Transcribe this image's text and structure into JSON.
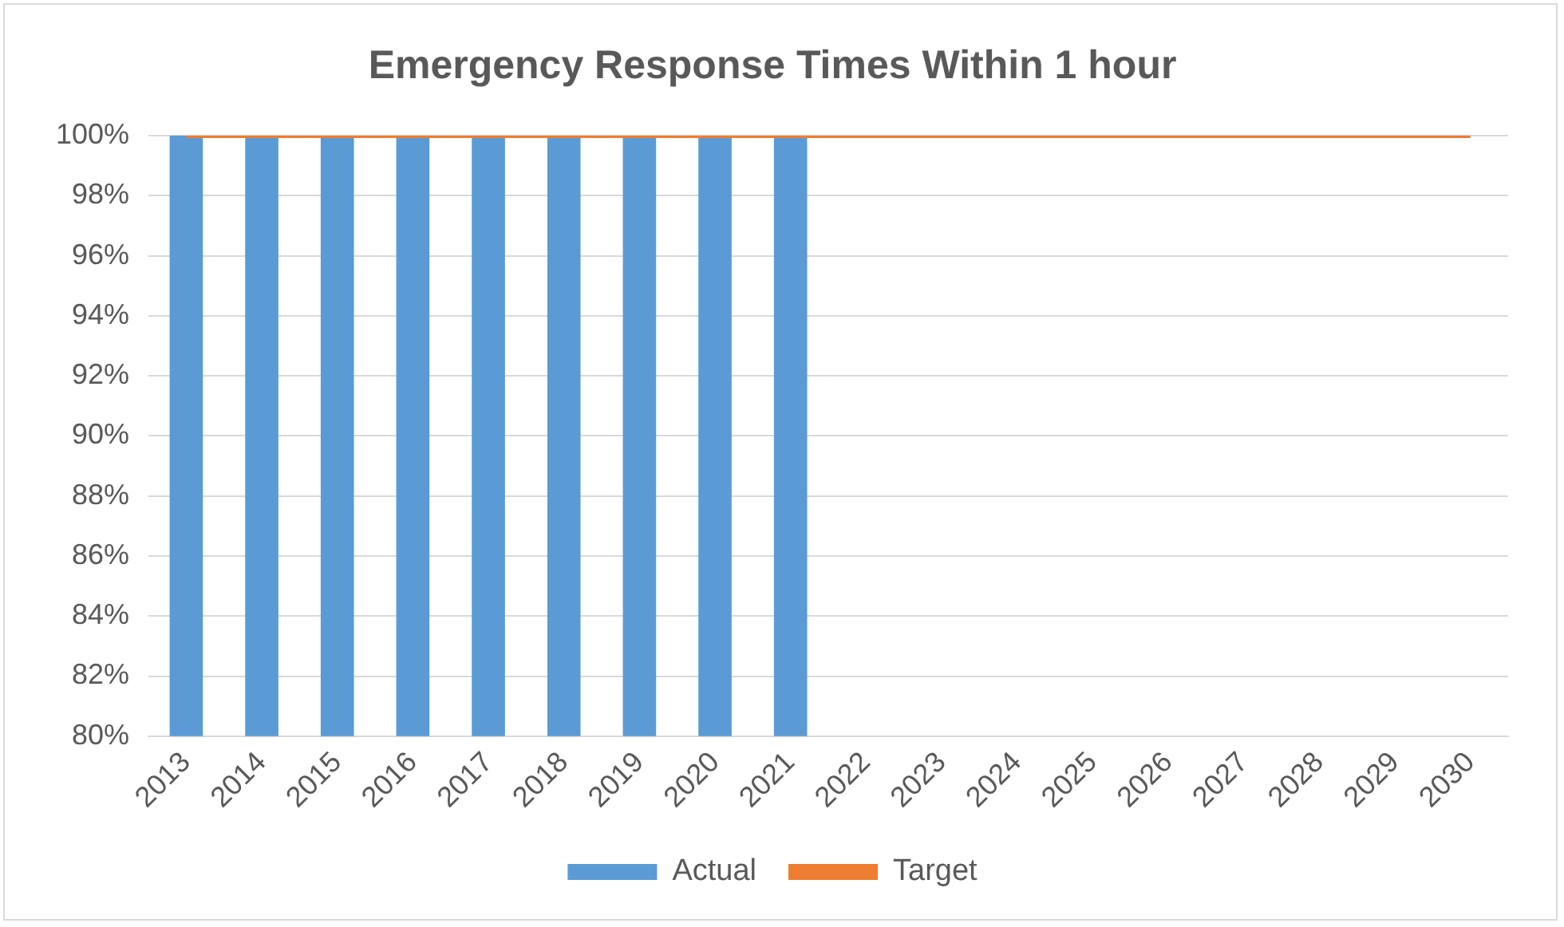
{
  "chart_data": {
    "type": "bar",
    "title": "Emergency Response Times Within 1 hour",
    "categories": [
      "2013",
      "2014",
      "2015",
      "2016",
      "2017",
      "2018",
      "2019",
      "2020",
      "2021",
      "2022",
      "2023",
      "2024",
      "2025",
      "2026",
      "2027",
      "2028",
      "2029",
      "2030"
    ],
    "series": [
      {
        "name": "Actual",
        "color": "#5b9bd5",
        "values": [
          100,
          100,
          100,
          100,
          100,
          100,
          100,
          100,
          100,
          null,
          null,
          null,
          null,
          null,
          null,
          null,
          null,
          null
        ]
      },
      {
        "name": "Target",
        "type": "line",
        "color": "#ed7d31",
        "values": [
          100,
          100,
          100,
          100,
          100,
          100,
          100,
          100,
          100,
          100,
          100,
          100,
          100,
          100,
          100,
          100,
          100,
          100
        ]
      }
    ],
    "ylim": [
      80,
      100
    ],
    "yticks": [
      {
        "value": 80,
        "label": "80%"
      },
      {
        "value": 82,
        "label": "82%"
      },
      {
        "value": 84,
        "label": "84%"
      },
      {
        "value": 86,
        "label": "86%"
      },
      {
        "value": 88,
        "label": "88%"
      },
      {
        "value": 90,
        "label": "90%"
      },
      {
        "value": 92,
        "label": "92%"
      },
      {
        "value": 94,
        "label": "94%"
      },
      {
        "value": 96,
        "label": "96%"
      },
      {
        "value": 98,
        "label": "98%"
      },
      {
        "value": 100,
        "label": "100%"
      }
    ],
    "grid": "y",
    "legend": "bottom",
    "marker": "none"
  }
}
